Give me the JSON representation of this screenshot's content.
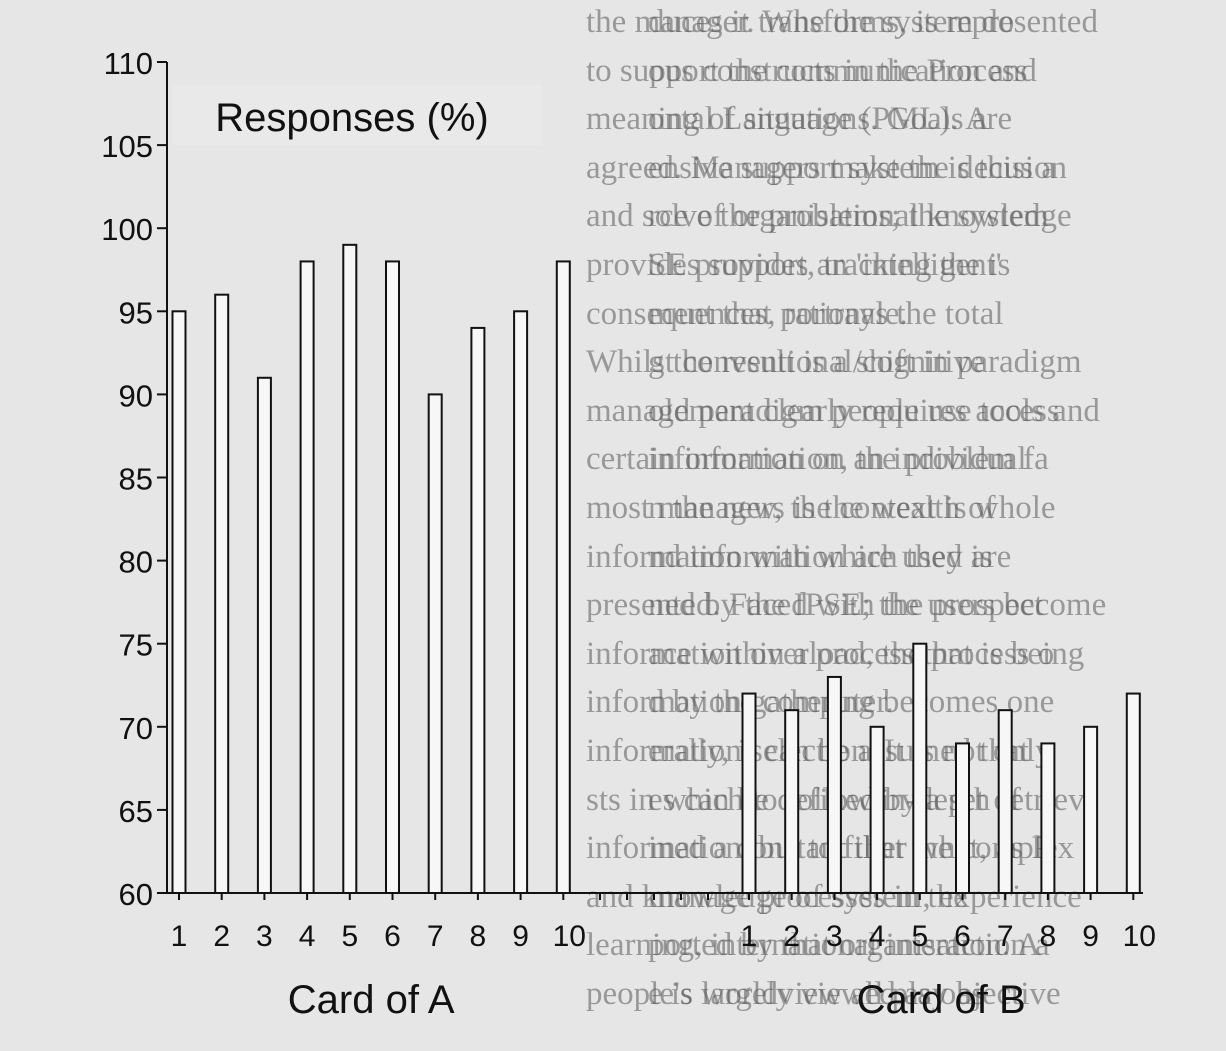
{
  "chart_data": {
    "type": "bar",
    "title": "Responses (%)",
    "ylabel": "",
    "ylim": [
      60,
      110
    ],
    "yticks": [
      60,
      65,
      70,
      75,
      80,
      85,
      90,
      95,
      100,
      105,
      110
    ],
    "grid": false,
    "groups": [
      {
        "xlabel": "Card of A",
        "categories": [
          "1",
          "2",
          "3",
          "4",
          "5",
          "6",
          "7",
          "8",
          "9",
          "10"
        ],
        "values": [
          95,
          96,
          91,
          98,
          99,
          98,
          90,
          94,
          95,
          98
        ]
      },
      {
        "xlabel": "Card of B",
        "categories": [
          "1",
          "2",
          "3",
          "4",
          "5",
          "6",
          "7",
          "8",
          "9",
          "10"
        ],
        "values": [
          72,
          71,
          73,
          70,
          75,
          69,
          71,
          69,
          70,
          72
        ]
      }
    ]
  },
  "background_text": {
    "left_column": [
      "the manager.  Whe the system do",
      "to support the communication and",
      "meaning of situations.  Goals are",
      "agreed.  Managers make the decision",
      "and solve the problems; the system",
      "provides support, tracking the is",
      "consequences, rationale.",
      "    Whilst conventional/cognitive",
      "management clearly requires access",
      "certain information, the problem fa",
      "most managers is the wealth of",
      "information with which they are",
      "presented.  Faced with the prospect",
      "information overload, the process o",
      "information gathering becomes one",
      "information selection.  It is not only",
      "sts in which to follow in-depth retrieve",
      "information, but to filter what, as P",
      "and knowledge of system, experience",
      "learning, international interaction a",
      "people's worldview all play as"
    ],
    "right_column": [
      "duces it transforms, is represented",
      "ous constructs in the Process",
      "ontal Language (PML).  A",
      "ensive support system is thus a",
      "rce of organisational knowledge",
      "SE provides an 'intelligent'",
      "ment that portrays the total",
      "g the result is a shift in paradigm",
      "old paradigm people use tools and",
      "information on an individual",
      "n the new, the context is whole",
      "nd information are used is",
      "ned by the IPSE; the users become",
      "ace within a process that is being",
      "d by the computer.",
      "erally, it can be assumed that",
      "es can be defined by a set of",
      "ined a constant that the complex",
      "manage processes in the",
      "ported by that organisation.  A",
      "e is largely viewed as objective"
    ]
  }
}
